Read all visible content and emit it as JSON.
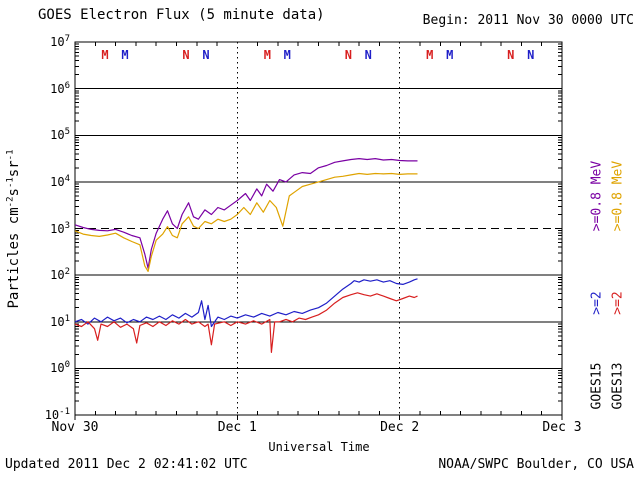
{
  "header": {
    "title": "GOES Electron Flux (5 minute data)",
    "begin_label": "Begin: 2011 Nov 30 0000 UTC"
  },
  "footer": {
    "updated": "Updated 2011 Dec 2 02:41:02 UTC",
    "source": "NOAA/SWPC Boulder, CO USA"
  },
  "axes": {
    "xlabel": "Universal Time",
    "x_ticks": [
      {
        "label": "Nov 30",
        "t": 0
      },
      {
        "label": "Dec 1",
        "t": 1
      },
      {
        "label": "Dec 2",
        "t": 2
      },
      {
        "label": "Dec 3",
        "t": 3
      }
    ],
    "y_exponents": [
      7,
      6,
      5,
      4,
      3,
      2,
      1,
      0,
      -1
    ],
    "ylabel_segments": [
      {
        "text": "Particles cm"
      },
      {
        "sup": "-2"
      },
      {
        "text": "s"
      },
      {
        "sup": "-1"
      },
      {
        "text": "sr"
      },
      {
        "sup": "-1"
      }
    ]
  },
  "legend": {
    "columns": [
      {
        "satellite": "GOES15",
        "e08_label": ">=0.8 MeV",
        "e08_color": "#7a00a3",
        "e2_label": ">=2",
        "e2_color": "#1f1fc8"
      },
      {
        "satellite": "GOES13",
        "e08_label": ">=0.8 MeV",
        "e08_color": "#dfa300",
        "e2_label": ">=2",
        "e2_color": "#d81f1f"
      }
    ]
  },
  "chart_data": {
    "type": "line",
    "title": "GOES Electron Flux (5 minute data)",
    "xlabel": "Universal Time",
    "ylabel": "Particles cm^-2 s^-1 sr^-1",
    "y_scale": "log",
    "y_range": [
      0.1,
      10000000
    ],
    "t_units": "days since 2011 Nov 30 0000 UTC",
    "x_range_days": [
      0,
      3
    ],
    "x_tick_labels": [
      "Nov 30",
      "Dec 1",
      "Dec 2",
      "Dec 3"
    ],
    "grid": {
      "solid_decades": [
        6,
        5,
        4,
        2,
        1,
        0
      ],
      "dashed_decades": [
        3
      ],
      "vertical_dotted_t": [
        1,
        2
      ]
    },
    "series": [
      {
        "name": "GOES15 >=0.8 MeV",
        "satellite": "GOES15",
        "energy": ">=0.8 MeV",
        "color": "#7a00a3",
        "points": [
          [
            0.0,
            1200
          ],
          [
            0.05,
            1050
          ],
          [
            0.1,
            955
          ],
          [
            0.15,
            912
          ],
          [
            0.2,
            891
          ],
          [
            0.25,
            955
          ],
          [
            0.3,
            832
          ],
          [
            0.35,
            708
          ],
          [
            0.4,
            631
          ],
          [
            0.43,
            282
          ],
          [
            0.45,
            141
          ],
          [
            0.47,
            355
          ],
          [
            0.5,
            794
          ],
          [
            0.54,
            1580
          ],
          [
            0.57,
            2400
          ],
          [
            0.6,
            1260
          ],
          [
            0.63,
            1000
          ],
          [
            0.66,
            2000
          ],
          [
            0.7,
            3550
          ],
          [
            0.73,
            1780
          ],
          [
            0.76,
            1580
          ],
          [
            0.8,
            2510
          ],
          [
            0.84,
            2000
          ],
          [
            0.88,
            2820
          ],
          [
            0.92,
            2510
          ],
          [
            0.96,
            3160
          ],
          [
            1.0,
            3980
          ],
          [
            1.05,
            5620
          ],
          [
            1.08,
            3980
          ],
          [
            1.12,
            7080
          ],
          [
            1.15,
            5010
          ],
          [
            1.18,
            8910
          ],
          [
            1.22,
            6310
          ],
          [
            1.26,
            11200
          ],
          [
            1.3,
            10000
          ],
          [
            1.35,
            14100
          ],
          [
            1.4,
            15800
          ],
          [
            1.45,
            15100
          ],
          [
            1.5,
            20000
          ],
          [
            1.55,
            22400
          ],
          [
            1.6,
            26300
          ],
          [
            1.65,
            28200
          ],
          [
            1.7,
            30200
          ],
          [
            1.75,
            31600
          ],
          [
            1.8,
            30200
          ],
          [
            1.85,
            31600
          ],
          [
            1.9,
            29500
          ],
          [
            1.95,
            30200
          ],
          [
            2.0,
            28800
          ],
          [
            2.05,
            28200
          ],
          [
            2.11,
            28200
          ]
        ]
      },
      {
        "name": "GOES13 >=0.8 MeV",
        "satellite": "GOES13",
        "energy": ">=0.8 MeV",
        "color": "#dfa300",
        "points": [
          [
            0.0,
            891
          ],
          [
            0.05,
            759
          ],
          [
            0.1,
            708
          ],
          [
            0.15,
            676
          ],
          [
            0.2,
            724
          ],
          [
            0.25,
            794
          ],
          [
            0.3,
            631
          ],
          [
            0.35,
            525
          ],
          [
            0.4,
            447
          ],
          [
            0.43,
            158
          ],
          [
            0.45,
            120
          ],
          [
            0.47,
            251
          ],
          [
            0.5,
            562
          ],
          [
            0.54,
            759
          ],
          [
            0.57,
            1100
          ],
          [
            0.6,
            708
          ],
          [
            0.63,
            631
          ],
          [
            0.66,
            1260
          ],
          [
            0.7,
            1780
          ],
          [
            0.73,
            1120
          ],
          [
            0.76,
            1000
          ],
          [
            0.8,
            1410
          ],
          [
            0.84,
            1260
          ],
          [
            0.88,
            1580
          ],
          [
            0.92,
            1410
          ],
          [
            0.96,
            1580
          ],
          [
            1.0,
            2000
          ],
          [
            1.04,
            2820
          ],
          [
            1.08,
            2000
          ],
          [
            1.12,
            3550
          ],
          [
            1.16,
            2240
          ],
          [
            1.2,
            3980
          ],
          [
            1.24,
            2820
          ],
          [
            1.28,
            1120
          ],
          [
            1.32,
            5010
          ],
          [
            1.36,
            6310
          ],
          [
            1.4,
            7940
          ],
          [
            1.45,
            8910
          ],
          [
            1.5,
            10000
          ],
          [
            1.55,
            11200
          ],
          [
            1.6,
            12600
          ],
          [
            1.65,
            13200
          ],
          [
            1.7,
            14100
          ],
          [
            1.75,
            15100
          ],
          [
            1.8,
            14500
          ],
          [
            1.85,
            15100
          ],
          [
            1.9,
            14800
          ],
          [
            1.95,
            15100
          ],
          [
            2.0,
            14500
          ],
          [
            2.05,
            14800
          ],
          [
            2.11,
            14800
          ]
        ]
      },
      {
        "name": "GOES15 >=2 MeV",
        "satellite": "GOES15",
        "energy": ">=2 MeV",
        "color": "#1f1fc8",
        "points": [
          [
            0.0,
            10.0
          ],
          [
            0.04,
            11.2
          ],
          [
            0.08,
            8.9
          ],
          [
            0.12,
            12.0
          ],
          [
            0.16,
            10.0
          ],
          [
            0.2,
            12.6
          ],
          [
            0.24,
            10.5
          ],
          [
            0.28,
            12.0
          ],
          [
            0.32,
            9.5
          ],
          [
            0.36,
            11.2
          ],
          [
            0.4,
            10.0
          ],
          [
            0.44,
            12.6
          ],
          [
            0.48,
            11.2
          ],
          [
            0.52,
            13.2
          ],
          [
            0.56,
            11.2
          ],
          [
            0.6,
            14.1
          ],
          [
            0.64,
            12.0
          ],
          [
            0.68,
            15.1
          ],
          [
            0.72,
            12.6
          ],
          [
            0.76,
            15.8
          ],
          [
            0.78,
            28.2
          ],
          [
            0.8,
            11.2
          ],
          [
            0.82,
            22.4
          ],
          [
            0.84,
            7.9
          ],
          [
            0.88,
            12.6
          ],
          [
            0.92,
            11.2
          ],
          [
            0.96,
            13.2
          ],
          [
            1.0,
            12.0
          ],
          [
            1.05,
            14.1
          ],
          [
            1.1,
            12.6
          ],
          [
            1.15,
            15.1
          ],
          [
            1.2,
            13.2
          ],
          [
            1.25,
            15.8
          ],
          [
            1.3,
            14.1
          ],
          [
            1.35,
            16.6
          ],
          [
            1.4,
            15.1
          ],
          [
            1.45,
            17.8
          ],
          [
            1.5,
            20.0
          ],
          [
            1.55,
            25.1
          ],
          [
            1.6,
            35.5
          ],
          [
            1.65,
            50.1
          ],
          [
            1.7,
            66.1
          ],
          [
            1.72,
            75.9
          ],
          [
            1.75,
            70.8
          ],
          [
            1.78,
            79.4
          ],
          [
            1.82,
            74.1
          ],
          [
            1.86,
            79.4
          ],
          [
            1.9,
            70.8
          ],
          [
            1.94,
            75.9
          ],
          [
            1.98,
            66.1
          ],
          [
            2.02,
            63.1
          ],
          [
            2.06,
            70.8
          ],
          [
            2.09,
            79.4
          ],
          [
            2.11,
            83.2
          ]
        ]
      },
      {
        "name": "GOES13 >=2 MeV",
        "satellite": "GOES13",
        "energy": ">=2 MeV",
        "color": "#d81f1f",
        "points": [
          [
            0.0,
            8.9
          ],
          [
            0.04,
            7.9
          ],
          [
            0.08,
            10.0
          ],
          [
            0.12,
            7.1
          ],
          [
            0.14,
            4.0
          ],
          [
            0.16,
            8.9
          ],
          [
            0.2,
            7.9
          ],
          [
            0.24,
            10.0
          ],
          [
            0.28,
            7.6
          ],
          [
            0.32,
            8.9
          ],
          [
            0.36,
            7.1
          ],
          [
            0.38,
            3.5
          ],
          [
            0.4,
            8.3
          ],
          [
            0.44,
            9.5
          ],
          [
            0.48,
            7.9
          ],
          [
            0.52,
            10.0
          ],
          [
            0.56,
            8.3
          ],
          [
            0.6,
            10.5
          ],
          [
            0.64,
            8.9
          ],
          [
            0.68,
            11.2
          ],
          [
            0.72,
            8.9
          ],
          [
            0.76,
            10.0
          ],
          [
            0.8,
            7.9
          ],
          [
            0.82,
            8.9
          ],
          [
            0.84,
            3.2
          ],
          [
            0.86,
            8.9
          ],
          [
            0.92,
            10.0
          ],
          [
            0.96,
            8.3
          ],
          [
            1.0,
            10.0
          ],
          [
            1.05,
            8.9
          ],
          [
            1.1,
            10.5
          ],
          [
            1.15,
            8.9
          ],
          [
            1.2,
            11.2
          ],
          [
            1.21,
            2.2
          ],
          [
            1.23,
            10.0
          ],
          [
            1.26,
            10.0
          ],
          [
            1.3,
            11.2
          ],
          [
            1.34,
            10.0
          ],
          [
            1.38,
            12.0
          ],
          [
            1.42,
            11.2
          ],
          [
            1.46,
            12.6
          ],
          [
            1.5,
            14.1
          ],
          [
            1.55,
            17.8
          ],
          [
            1.6,
            25.1
          ],
          [
            1.65,
            33.1
          ],
          [
            1.7,
            38.0
          ],
          [
            1.74,
            41.7
          ],
          [
            1.78,
            38.0
          ],
          [
            1.82,
            35.5
          ],
          [
            1.86,
            39.8
          ],
          [
            1.9,
            35.5
          ],
          [
            1.94,
            31.6
          ],
          [
            1.98,
            28.2
          ],
          [
            2.02,
            31.6
          ],
          [
            2.06,
            35.5
          ],
          [
            2.09,
            33.1
          ],
          [
            2.11,
            35.5
          ]
        ]
      }
    ],
    "markers": [
      {
        "label": "M",
        "satellite": "GOES13",
        "t": 0.185,
        "color": "#d81f1f"
      },
      {
        "label": "M",
        "satellite": "GOES15",
        "t": 0.308,
        "color": "#1f1fc8"
      },
      {
        "label": "N",
        "satellite": "GOES13",
        "t": 0.684,
        "color": "#d81f1f"
      },
      {
        "label": "N",
        "satellite": "GOES15",
        "t": 0.807,
        "color": "#1f1fc8"
      },
      {
        "label": "M",
        "satellite": "GOES13",
        "t": 1.185,
        "color": "#d81f1f"
      },
      {
        "label": "M",
        "satellite": "GOES15",
        "t": 1.308,
        "color": "#1f1fc8"
      },
      {
        "label": "N",
        "satellite": "GOES13",
        "t": 1.684,
        "color": "#d81f1f"
      },
      {
        "label": "N",
        "satellite": "GOES15",
        "t": 1.807,
        "color": "#1f1fc8"
      },
      {
        "label": "M",
        "satellite": "GOES13",
        "t": 2.185,
        "color": "#d81f1f"
      },
      {
        "label": "M",
        "satellite": "GOES15",
        "t": 2.308,
        "color": "#1f1fc8"
      },
      {
        "label": "N",
        "satellite": "GOES13",
        "t": 2.684,
        "color": "#d81f1f"
      },
      {
        "label": "N",
        "satellite": "GOES15",
        "t": 2.807,
        "color": "#1f1fc8"
      }
    ]
  },
  "page": {
    "background": "#ffffff",
    "frame_color": "#000000"
  }
}
